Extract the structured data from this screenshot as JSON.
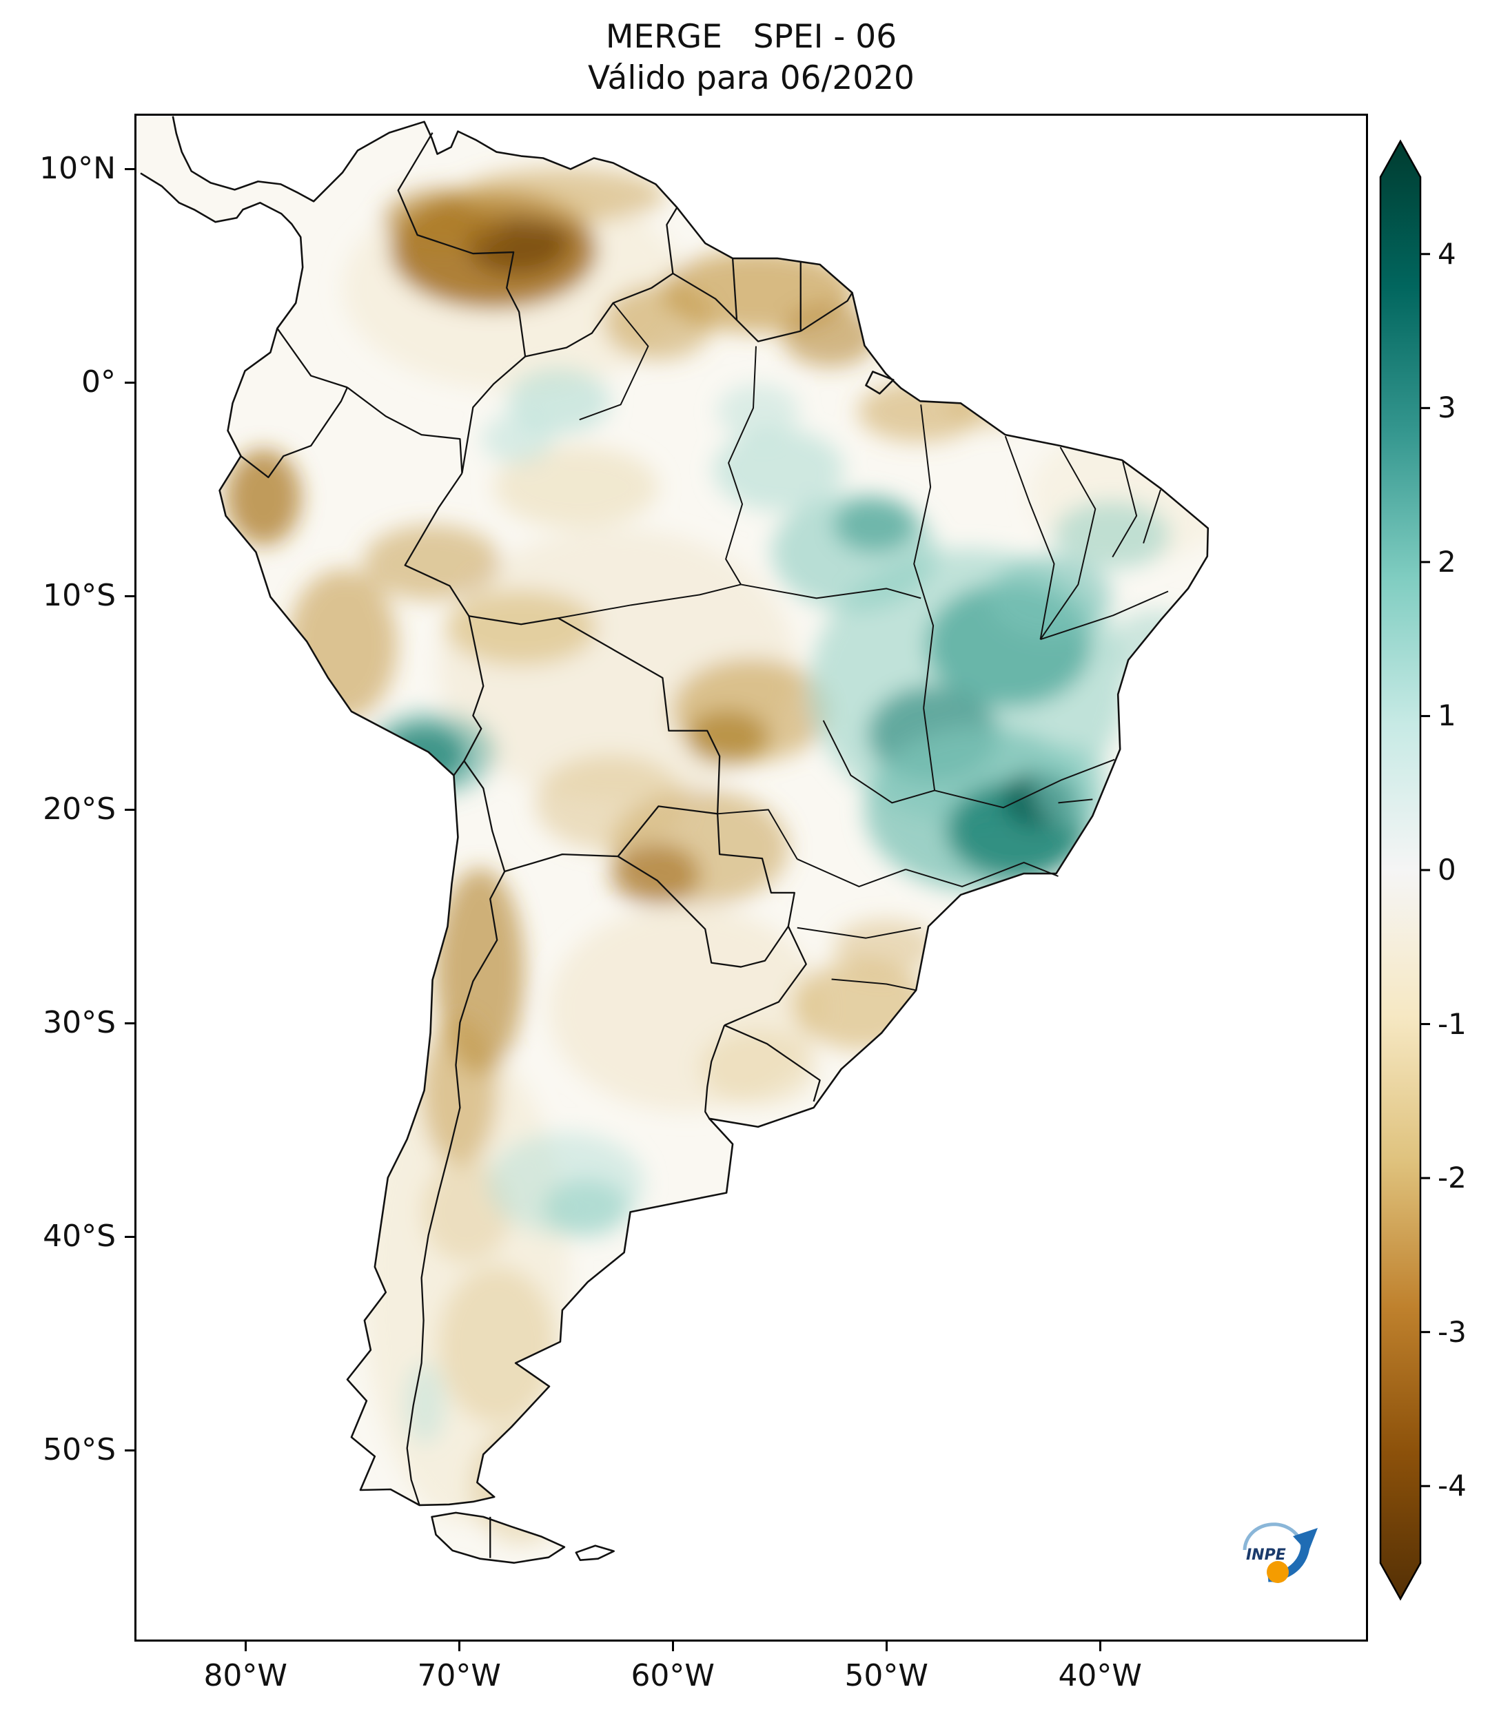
{
  "title": "MERGE   SPEI - 06",
  "subtitle": "Válido para 06/2020",
  "map": {
    "y_ticks": [
      {
        "label": "10°N",
        "lat": 10
      },
      {
        "label": "0°",
        "lat": 0
      },
      {
        "label": "10°S",
        "lat": -10
      },
      {
        "label": "20°S",
        "lat": -20
      },
      {
        "label": "30°S",
        "lat": -30
      },
      {
        "label": "40°S",
        "lat": -40
      },
      {
        "label": "50°S",
        "lat": -50
      }
    ],
    "x_ticks": [
      {
        "label": "80°W",
        "lon": -80
      },
      {
        "label": "70°W",
        "lon": -70
      },
      {
        "label": "60°W",
        "lon": -60
      },
      {
        "label": "50°W",
        "lon": -50
      },
      {
        "label": "40°W",
        "lon": -40
      }
    ]
  },
  "colorbar": {
    "tick_labels": [
      "4",
      "3",
      "2",
      "1",
      "0",
      "-1",
      "-2",
      "-3",
      "-4"
    ],
    "tick_values": [
      4,
      3,
      2,
      1,
      0,
      -1,
      -2,
      -3,
      -4
    ],
    "vmin": -4.5,
    "vmax": 4.5,
    "colors_bottom_to_top": [
      "#543005",
      "#8c510a",
      "#bf812d",
      "#dfc27d",
      "#f6e8c3",
      "#f5f5f5",
      "#c7eae5",
      "#80cdc1",
      "#35978f",
      "#01665e",
      "#003c30"
    ]
  },
  "logo": {
    "text": "INPE",
    "arrow_color": "#1f6cb4",
    "swirl_color": "#8ab6d8",
    "ball_color": "#f59c00",
    "text_color": "#1a3a6b"
  }
}
